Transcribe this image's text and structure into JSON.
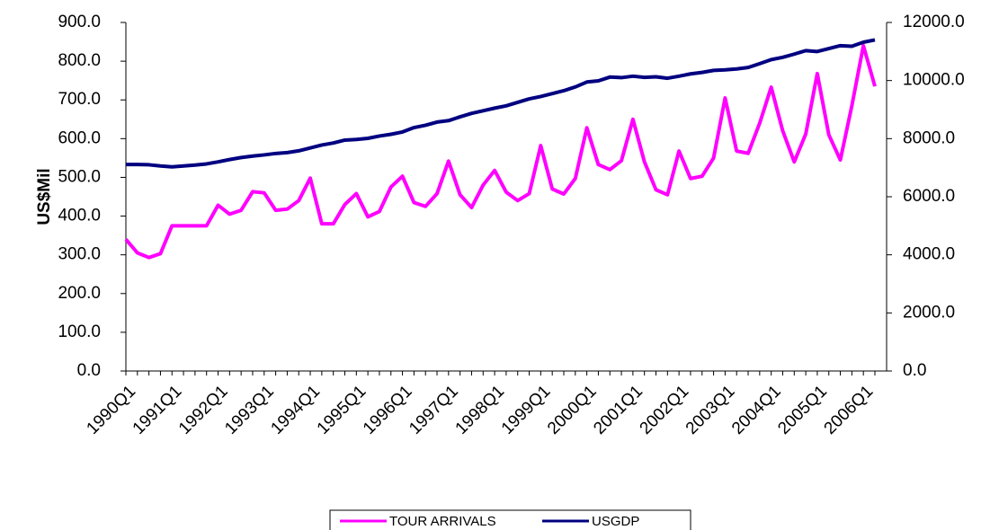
{
  "chart_data": {
    "type": "line",
    "y_label": "US$Mil",
    "categories": [
      "1990Q1",
      null,
      null,
      null,
      "1991Q1",
      null,
      null,
      null,
      "1992Q1",
      null,
      null,
      null,
      "1993Q1",
      null,
      null,
      null,
      "1994Q1",
      null,
      null,
      null,
      "1995Q1",
      null,
      null,
      null,
      "1996Q1",
      null,
      null,
      null,
      "1997Q1",
      null,
      null,
      null,
      "1998Q1",
      null,
      null,
      null,
      "1999Q1",
      null,
      null,
      null,
      "2000Q1",
      null,
      null,
      null,
      "2001Q1",
      null,
      null,
      null,
      "2002Q1",
      null,
      null,
      null,
      "2003Q1",
      null,
      null,
      null,
      "2004Q1",
      null,
      null,
      null,
      "2005Q1",
      null,
      null,
      null,
      "2006Q1",
      null
    ],
    "series": [
      {
        "name": "TOUR ARRIVALS",
        "color": "#ff00ff",
        "values": [
          340,
          305,
          293,
          303,
          375,
          375,
          375,
          375,
          428,
          405,
          415,
          463,
          460,
          415,
          418,
          440,
          498,
          380,
          380,
          430,
          458,
          398,
          412,
          475,
          503,
          435,
          425,
          458,
          542,
          455,
          422,
          480,
          518,
          462,
          440,
          458,
          582,
          470,
          457,
          497,
          628,
          533,
          520,
          543,
          650,
          540,
          468,
          455,
          568,
          497,
          503,
          550,
          705,
          568,
          562,
          640,
          733,
          620,
          540,
          612,
          768,
          610,
          545,
          685,
          840,
          735
        ]
      },
      {
        "name": "USGDP",
        "color": "#000080",
        "axis": "y2",
        "values": [
          7110,
          7110,
          7100,
          7060,
          7030,
          7060,
          7090,
          7130,
          7200,
          7280,
          7350,
          7400,
          7440,
          7490,
          7520,
          7580,
          7680,
          7780,
          7850,
          7950,
          7970,
          8010,
          8090,
          8150,
          8230,
          8380,
          8460,
          8570,
          8620,
          8750,
          8870,
          8960,
          9050,
          9130,
          9250,
          9370,
          9450,
          9550,
          9650,
          9780,
          9950,
          9990,
          10120,
          10100,
          10150,
          10110,
          10130,
          10080,
          10150,
          10230,
          10280,
          10350,
          10370,
          10400,
          10450,
          10580,
          10720,
          10800,
          10910,
          11030,
          11000,
          11100,
          11200,
          11180,
          11320,
          11400
        ]
      }
    ],
    "ylim": [
      0,
      900
    ],
    "yticks": [
      {
        "value": 0,
        "label": "0.0"
      },
      {
        "value": 100,
        "label": "100.0"
      },
      {
        "value": 200,
        "label": "200.0"
      },
      {
        "value": 300,
        "label": "300.0"
      },
      {
        "value": 400,
        "label": "400.0"
      },
      {
        "value": 500,
        "label": "500.0"
      },
      {
        "value": 600,
        "label": "600.0"
      },
      {
        "value": 700,
        "label": "700.0"
      },
      {
        "value": 800,
        "label": "800.0"
      },
      {
        "value": 900,
        "label": "900.0"
      }
    ],
    "y2lim": [
      0,
      12000
    ],
    "y2ticks": [
      {
        "value": 0,
        "label": "0.0"
      },
      {
        "value": 2000,
        "label": "2000.0"
      },
      {
        "value": 4000,
        "label": "4000.0"
      },
      {
        "value": 6000,
        "label": "6000.0"
      },
      {
        "value": 8000,
        "label": "8000.0"
      },
      {
        "value": 10000,
        "label": "10000.0"
      },
      {
        "value": 12000,
        "label": "12000.0"
      }
    ],
    "legend": "bottom"
  }
}
